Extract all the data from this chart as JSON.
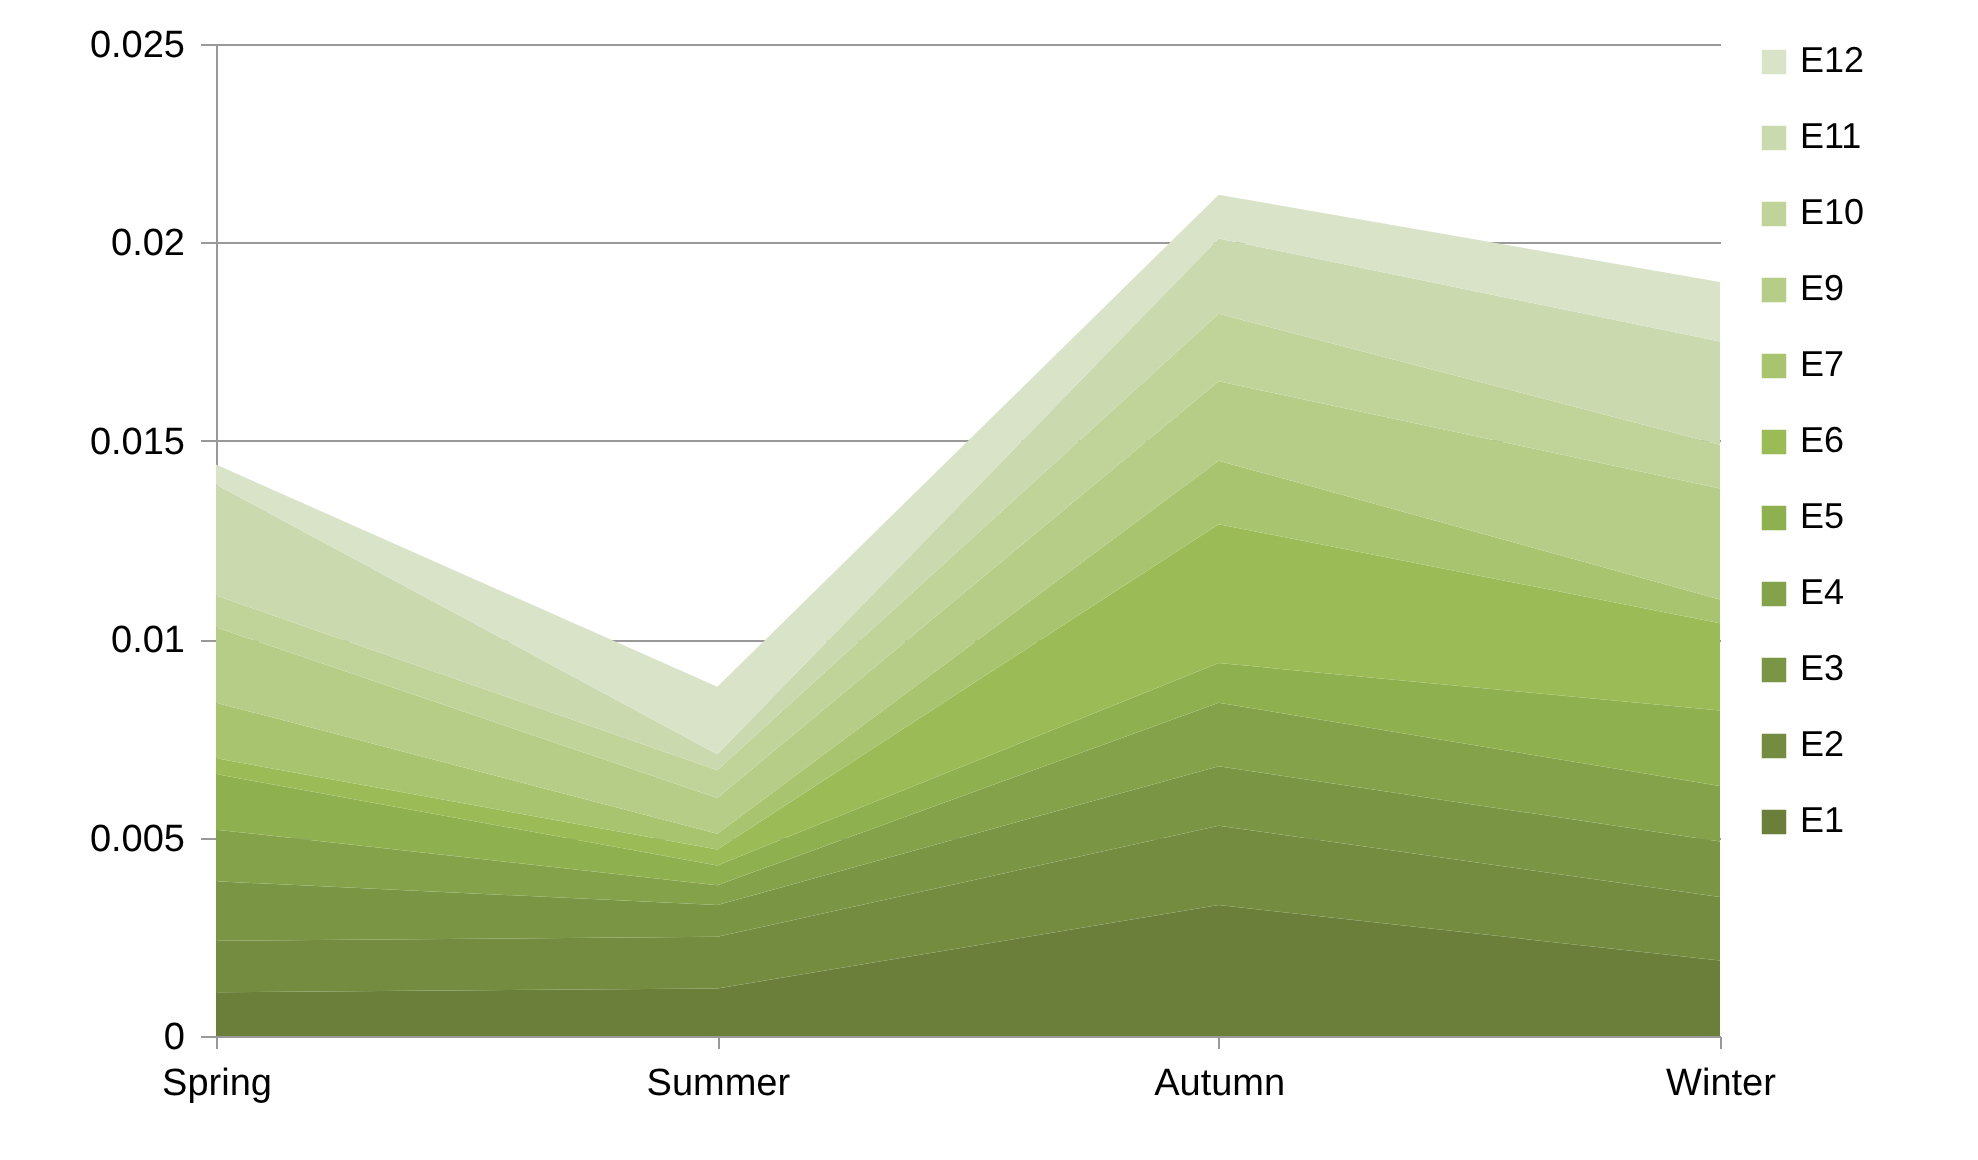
{
  "chart_data": {
    "type": "area",
    "stacked": true,
    "categories": [
      "Spring",
      "Summer",
      "Autumn",
      "Winter"
    ],
    "series": [
      {
        "name": "E1",
        "color": "#6b7f3a",
        "values": [
          0.0011,
          0.0012,
          0.0033,
          0.0019
        ]
      },
      {
        "name": "E2",
        "color": "#738c3f",
        "values": [
          0.0013,
          0.0013,
          0.002,
          0.0016
        ]
      },
      {
        "name": "E3",
        "color": "#7a9645",
        "values": [
          0.0015,
          0.0008,
          0.0015,
          0.0014
        ]
      },
      {
        "name": "E4",
        "color": "#84a24a",
        "values": [
          0.0013,
          0.0005,
          0.0016,
          0.0014
        ]
      },
      {
        "name": "E5",
        "color": "#8fb04f",
        "values": [
          0.0014,
          0.0005,
          0.001,
          0.0019
        ]
      },
      {
        "name": "E6",
        "color": "#9abb55",
        "values": [
          0.0004,
          0.0004,
          0.0035,
          0.0022
        ]
      },
      {
        "name": "E7",
        "color": "#a8c46e",
        "values": [
          0.0014,
          0.0004,
          0.0016,
          0.0006
        ]
      },
      {
        "name": "E9",
        "color": "#b5cd86",
        "values": [
          0.0019,
          0.0009,
          0.002,
          0.0028
        ]
      },
      {
        "name": "E10",
        "color": "#c0d49a",
        "values": [
          0.0008,
          0.0007,
          0.0017,
          0.0011
        ]
      },
      {
        "name": "E11",
        "color": "#cad9ae",
        "values": [
          0.0028,
          0.0004,
          0.0019,
          0.0026
        ]
      },
      {
        "name": "E12",
        "color": "#d9e3c8",
        "values": [
          0.0005,
          0.0017,
          0.0011,
          0.0015
        ]
      }
    ],
    "ylim": [
      0,
      0.025
    ],
    "yticks": [
      0,
      0.005,
      0.01,
      0.015,
      0.02,
      0.025
    ],
    "grid": "y",
    "legend": "right"
  }
}
